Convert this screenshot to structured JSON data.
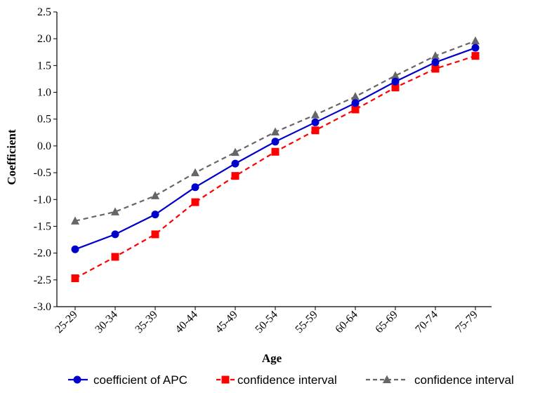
{
  "chart_data": {
    "type": "line",
    "title": "",
    "xlabel": "Age",
    "ylabel": "Coefficient",
    "categories": [
      "25-29",
      "30-34",
      "35-39",
      "40-44",
      "45-49",
      "50-54",
      "55-59",
      "60-64",
      "65-69",
      "70-74",
      "75-79"
    ],
    "ylim": [
      -3.0,
      2.5
    ],
    "yticks": [
      "-3.0",
      "-2.5",
      "-2.0",
      "-1.5",
      "-1.0",
      "-0.5",
      "0.0",
      "0.5",
      "1.0",
      "1.5",
      "2.0",
      "2.5"
    ],
    "grid": false,
    "legend_position": "bottom",
    "series": [
      {
        "name": "coefficient of APC",
        "color": "#0000cc",
        "line_style": "solid",
        "marker": "circle",
        "values": [
          -1.93,
          -1.65,
          -1.28,
          -0.77,
          -0.33,
          0.08,
          0.44,
          0.8,
          1.2,
          1.56,
          1.83
        ]
      },
      {
        "name": "confidence interval",
        "color": "#ff0000",
        "line_style": "dashed",
        "marker": "square",
        "values": [
          -2.47,
          -2.07,
          -1.65,
          -1.05,
          -0.56,
          -0.11,
          0.29,
          0.68,
          1.09,
          1.44,
          1.68
        ]
      },
      {
        "name": "confidence interval",
        "color": "#666666",
        "line_style": "dashed",
        "marker": "triangle",
        "values": [
          -1.4,
          -1.23,
          -0.93,
          -0.5,
          -0.12,
          0.26,
          0.58,
          0.92,
          1.31,
          1.68,
          1.96
        ]
      }
    ]
  }
}
